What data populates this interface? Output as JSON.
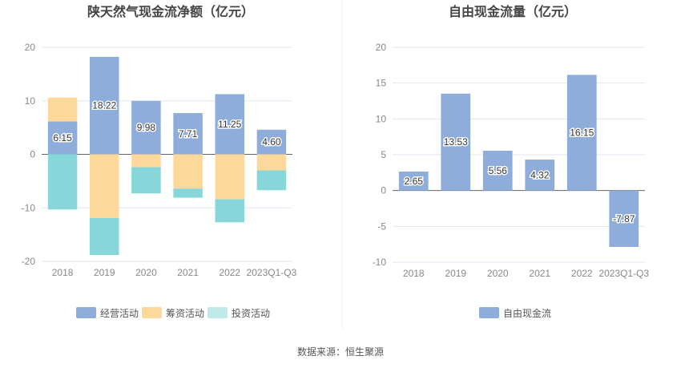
{
  "source": "数据来源：恒生聚源",
  "chart_data": [
    {
      "type": "bar",
      "stacked": true,
      "title": "陕天然气现金流净额（亿元）",
      "categories": [
        "2018",
        "2019",
        "2020",
        "2021",
        "2022",
        "2023Q1-Q3"
      ],
      "ylim": [
        -20,
        20
      ],
      "yticks": [
        -20,
        -10,
        0,
        10,
        20
      ],
      "grid": true,
      "legend_position": "bottom",
      "series": [
        {
          "name": "经营活动",
          "color": "#8eaddb",
          "values": [
            6.15,
            18.22,
            9.98,
            7.71,
            11.25,
            4.6
          ],
          "labeled": true
        },
        {
          "name": "筹资活动",
          "color": "#fdd89b",
          "values": [
            4.45,
            -11.9,
            -2.4,
            -6.4,
            -8.4,
            -3.0
          ],
          "labeled": false
        },
        {
          "name": "投资活动",
          "color": "#87d6d9",
          "legend_color": "#bfe9ea",
          "values": [
            -10.3,
            -6.9,
            -4.9,
            -1.7,
            -4.3,
            -3.7
          ],
          "labeled": false
        }
      ]
    },
    {
      "type": "bar",
      "title": "自由现金流量（亿元）",
      "categories": [
        "2018",
        "2019",
        "2020",
        "2021",
        "2022",
        "2023Q1-Q3"
      ],
      "ylim": [
        -10,
        20
      ],
      "yticks": [
        -10,
        -5,
        0,
        5,
        10,
        15,
        20
      ],
      "grid": true,
      "legend_position": "bottom",
      "series": [
        {
          "name": "自由现金流",
          "color": "#8eaddb",
          "values": [
            2.65,
            13.53,
            5.56,
            4.32,
            16.15,
            -7.87
          ],
          "labeled": true
        }
      ]
    }
  ]
}
